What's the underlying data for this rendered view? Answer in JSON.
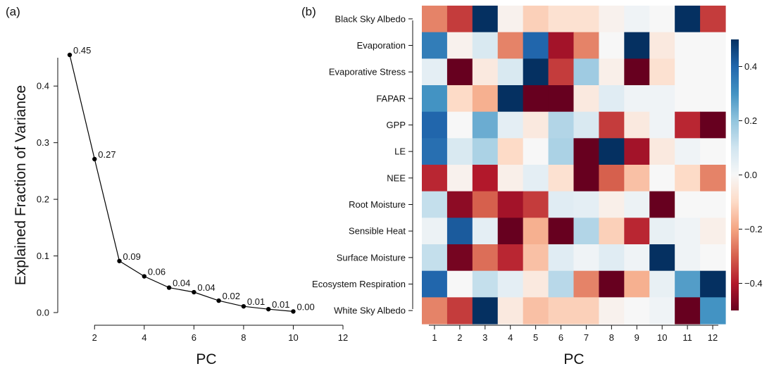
{
  "panels": {
    "a": "(a)",
    "b": "(b)"
  },
  "chart_data": [
    {
      "type": "line",
      "title": "",
      "xlabel": "PC",
      "ylabel": "Explained Fraction of Variance",
      "xlim": [
        1,
        12
      ],
      "ylim": [
        0,
        0.45
      ],
      "xticks": [
        2,
        4,
        6,
        8,
        10,
        12
      ],
      "yticks": [
        0.0,
        0.1,
        0.2,
        0.3,
        0.4
      ],
      "ytick_labels": [
        "0.0",
        "0.1",
        "0.2",
        "0.3",
        "0.4"
      ],
      "x": [
        1,
        2,
        3,
        4,
        5,
        6,
        7,
        8,
        9,
        10
      ],
      "y": [
        0.455,
        0.271,
        0.091,
        0.064,
        0.044,
        0.036,
        0.021,
        0.011,
        0.006,
        0.002
      ],
      "data_labels": [
        "0.45",
        "0.27",
        "0.09",
        "0.06",
        "0.04",
        "0.04",
        "0.02",
        "0.01",
        "0.01",
        "0.00"
      ]
    },
    {
      "type": "heatmap",
      "title": "",
      "xlabel": "PC",
      "ylabel": "",
      "colormap": "RdBu",
      "vmin": -0.5,
      "vmax": 0.5,
      "colorbar_ticks": [
        0.4,
        0.2,
        0.0,
        -0.2,
        -0.4
      ],
      "colorbar_tick_labels": [
        "0.4",
        "0.2",
        "0.0",
        "−0.2",
        "−0.4"
      ],
      "x": [
        "1",
        "2",
        "3",
        "4",
        "5",
        "6",
        "7",
        "8",
        "9",
        "10",
        "11",
        "12"
      ],
      "rows": [
        "Black Sky Albedo",
        "Evaporation",
        "Evaporative Stress",
        "FAPAR",
        "GPP",
        "LE",
        "NEE",
        "Root Moisture",
        "Sensible Heat",
        "Surface Moisture",
        "Ecosystem Respiration",
        "White Sky Albedo"
      ],
      "values": [
        [
          -0.25,
          -0.35,
          0.5,
          -0.02,
          -0.12,
          -0.08,
          -0.08,
          -0.02,
          0.02,
          0.0,
          0.5,
          -0.35
        ],
        [
          0.35,
          -0.02,
          0.08,
          -0.25,
          0.4,
          -0.42,
          -0.25,
          0.0,
          0.5,
          -0.05,
          0.0,
          0.0
        ],
        [
          0.05,
          -0.5,
          -0.05,
          0.08,
          0.5,
          -0.35,
          0.18,
          -0.03,
          -0.5,
          -0.08,
          0.0,
          0.0
        ],
        [
          0.3,
          -0.1,
          -0.18,
          0.5,
          -0.5,
          -0.5,
          -0.05,
          0.06,
          0.02,
          0.02,
          0.0,
          0.0
        ],
        [
          0.4,
          0.0,
          0.25,
          0.05,
          -0.05,
          0.15,
          0.08,
          -0.35,
          -0.05,
          0.02,
          -0.38,
          -0.5
        ],
        [
          0.38,
          0.08,
          0.16,
          -0.1,
          0.0,
          0.16,
          -0.5,
          0.5,
          -0.42,
          -0.05,
          0.02,
          0.0
        ],
        [
          -0.38,
          -0.02,
          -0.4,
          -0.03,
          0.05,
          -0.08,
          -0.5,
          -0.3,
          -0.15,
          0.0,
          -0.1,
          -0.25
        ],
        [
          0.12,
          -0.45,
          -0.3,
          -0.42,
          -0.35,
          0.06,
          0.05,
          -0.03,
          0.03,
          -0.5,
          0.0,
          0.0
        ],
        [
          0.03,
          0.42,
          0.05,
          -0.5,
          -0.18,
          -0.5,
          0.15,
          -0.12,
          -0.38,
          0.04,
          0.02,
          -0.03
        ],
        [
          0.12,
          -0.48,
          -0.28,
          -0.38,
          -0.15,
          0.06,
          0.02,
          0.06,
          0.02,
          0.5,
          0.02,
          0.0
        ],
        [
          0.4,
          0.0,
          0.12,
          0.05,
          -0.05,
          0.14,
          -0.25,
          -0.5,
          -0.18,
          0.04,
          0.28,
          0.5
        ],
        [
          -0.25,
          -0.35,
          0.5,
          -0.05,
          -0.15,
          -0.12,
          -0.12,
          -0.02,
          0.0,
          0.02,
          -0.5,
          0.3
        ]
      ]
    }
  ]
}
